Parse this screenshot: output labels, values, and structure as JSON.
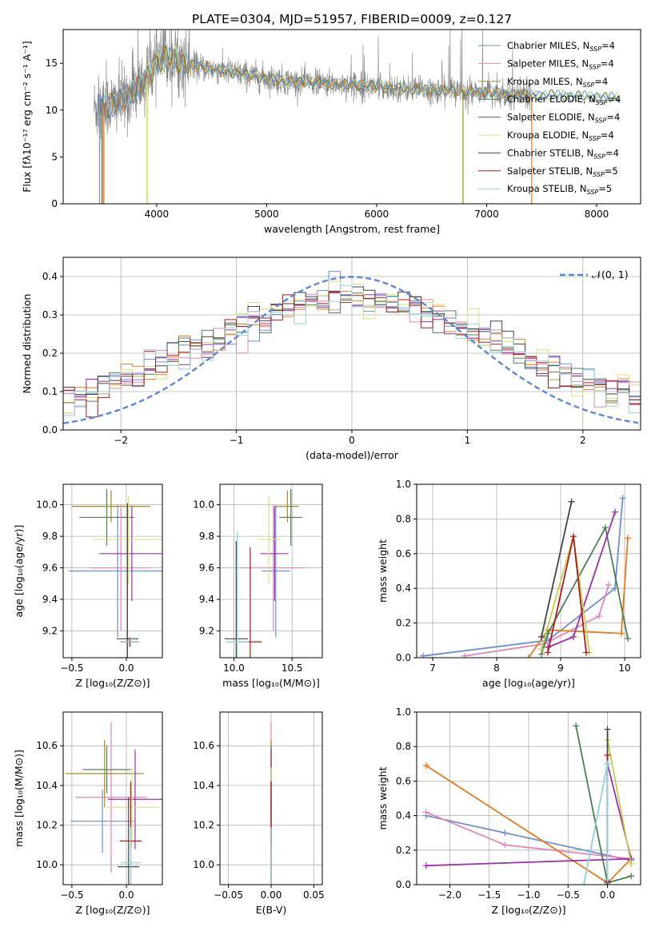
{
  "figure_title": "PLATE=0304, MJD=51957, FIBERID=0009, z=0.127",
  "legend": [
    {
      "label": "Chabrier MILES, N",
      "sub": "SSP",
      "suffix": "=4",
      "color": "#6a8fd6"
    },
    {
      "label": "Salpeter MILES, N",
      "sub": "SSP",
      "suffix": "=4",
      "color": "#e285b7"
    },
    {
      "label": "Kroupa MILES, N",
      "sub": "SSP",
      "suffix": "=4",
      "color": "#a88a22"
    },
    {
      "label": "Chabrier ELODIE, N",
      "sub": "SSP",
      "suffix": "=4",
      "color": "#4e7d55"
    },
    {
      "label": "Salpeter ELODIE, N",
      "sub": "SSP",
      "suffix": "=4",
      "color": "#9b30a8"
    },
    {
      "label": "Kroupa ELODIE, N",
      "sub": "SSP",
      "suffix": "=4",
      "color": "#d9e27a"
    },
    {
      "label": "Chabrier STELIB, N",
      "sub": "SSP",
      "suffix": "=4",
      "color": "#444444"
    },
    {
      "label": "Salpeter STELIB, N",
      "sub": "SSP",
      "suffix": "=5",
      "color": "#b01a1a"
    },
    {
      "label": "Kroupa STELIB, N",
      "sub": "SSP",
      "suffix": "=5",
      "color": "#8fd3d8"
    }
  ],
  "colors": {
    "data_gray": "#7f7f7f",
    "orange": "#e67a1c",
    "normal_curve": "#5b87d6",
    "grid": "#b0b0b0"
  },
  "chart_data": [
    {
      "id": "spectrum",
      "type": "line",
      "xlabel": "wavelength [Angstrom, rest frame]",
      "ylabel": "Flux [fλ10⁻¹⁷ erg cm⁻² s⁻¹ A⁻¹]",
      "xlim": [
        3150,
        8400
      ],
      "ylim": [
        0,
        18.6
      ],
      "xticks": [
        4000,
        5000,
        6000,
        7000,
        8000
      ],
      "yticks": [
        0,
        5,
        10,
        15
      ],
      "grid": false,
      "legend_position": "right",
      "continuum": {
        "x": [
          3430,
          3500,
          3600,
          3700,
          3800,
          3900,
          4000,
          4100,
          4200,
          4300,
          4400,
          4500,
          4600,
          4800,
          5000,
          5200,
          5400,
          5600,
          5800,
          6000,
          6200,
          6400,
          6600,
          6800,
          7000,
          7200,
          7400,
          7600,
          7800,
          8000,
          8200
        ],
        "y": [
          10.2,
          10.3,
          10.6,
          11.2,
          12.0,
          13.2,
          15.0,
          15.7,
          15.3,
          14.8,
          14.6,
          14.4,
          14.2,
          13.8,
          13.4,
          13.1,
          13.0,
          12.8,
          12.7,
          12.5,
          12.3,
          12.2,
          12.1,
          12.0,
          11.9,
          11.7,
          11.6,
          11.6,
          11.5,
          11.4,
          11.3
        ]
      }
    },
    {
      "id": "residuals",
      "type": "line",
      "xlabel": "(data-model)/error",
      "ylabel": "Normed distribution",
      "xlim": [
        -2.5,
        2.5
      ],
      "ylim": [
        0,
        0.45
      ],
      "xticks": [
        -2,
        -1,
        0,
        1,
        2
      ],
      "yticks": [
        0.0,
        0.1,
        0.2,
        0.3,
        0.4
      ],
      "grid": true,
      "legend_label": "𝒩(0, 1)",
      "legend_position": "top-right",
      "normal": {
        "mean": 0,
        "sigma": 1
      },
      "hist_bins": {
        "start": -2.5,
        "width": 0.1,
        "count": 50
      }
    },
    {
      "id": "age-vs-Z",
      "type": "scatter",
      "xlabel": "Z [log₁₀(Z/Z⊙)]",
      "ylabel": "age  [log₁₀(age/yr)]",
      "xlim": [
        -0.58,
        0.33
      ],
      "ylim": [
        9.03,
        10.13
      ],
      "xticks": [
        -0.5,
        0.0
      ],
      "yticks": [
        9.2,
        9.4,
        9.6,
        9.8,
        10.0
      ],
      "grid": true,
      "points": [
        {
          "x": -0.08,
          "y": 9.58,
          "xerr": 0.45,
          "yerr": 0.42
        },
        {
          "x": -0.05,
          "y": 9.6,
          "xerr": 0.28,
          "yerr": 0.4
        },
        {
          "x": -0.14,
          "y": 9.99,
          "xerr": 0.36,
          "yerr": 0.1
        },
        {
          "x": -0.18,
          "y": 9.92,
          "xerr": 0.25,
          "yerr": 0.18
        },
        {
          "x": 0.05,
          "y": 9.69,
          "xerr": 0.3,
          "yerr": 0.3
        },
        {
          "x": 0.02,
          "y": 9.78,
          "xerr": 0.32,
          "yerr": 0.28
        },
        {
          "x": 0.01,
          "y": 9.15,
          "xerr": 0.1,
          "yerr": 0.86
        },
        {
          "x": 0.03,
          "y": 9.13,
          "xerr": 0.08,
          "yerr": 0.03
        },
        {
          "x": 0.04,
          "y": 9.13,
          "xerr": 0.08,
          "yerr": 0.03
        }
      ]
    },
    {
      "id": "age-vs-mass",
      "type": "scatter",
      "xlabel": "mass [log₁₀(M/M⊙)]",
      "ylabel": "",
      "xlim": [
        9.88,
        10.76
      ],
      "ylim": [
        9.03,
        10.13
      ],
      "xticks": [
        10.0,
        10.5
      ],
      "yticks": [
        9.2,
        9.4,
        9.6,
        9.8,
        10.0
      ],
      "grid": true,
      "points": [
        {
          "x": 10.36,
          "y": 9.58,
          "xerr": 0.12,
          "yerr": 0.42
        },
        {
          "x": 10.34,
          "y": 9.6,
          "xerr": 0.28,
          "yerr": 0.4
        },
        {
          "x": 10.46,
          "y": 9.99,
          "xerr": 0.1,
          "yerr": 0.1
        },
        {
          "x": 10.49,
          "y": 9.92,
          "xerr": 0.1,
          "yerr": 0.18
        },
        {
          "x": 10.35,
          "y": 9.69,
          "xerr": 0.12,
          "yerr": 0.3
        },
        {
          "x": 10.3,
          "y": 9.78,
          "xerr": 0.1,
          "yerr": 0.28
        },
        {
          "x": 10.02,
          "y": 9.15,
          "xerr": 0.1,
          "yerr": 0.62
        },
        {
          "x": 10.14,
          "y": 9.13,
          "xerr": 0.1,
          "yerr": 0.6
        },
        {
          "x": 10.03,
          "y": 9.13,
          "xerr": 0.1,
          "yerr": 0.7
        }
      ]
    },
    {
      "id": "weight-vs-age",
      "type": "line",
      "xlabel": "age  [log₁₀(age/yr)]",
      "ylabel": "mass weight",
      "xlim": [
        6.75,
        10.25
      ],
      "ylim": [
        0,
        1.0
      ],
      "xticks": [
        7,
        8,
        9,
        10
      ],
      "yticks": [
        0.0,
        0.2,
        0.4,
        0.6,
        0.8,
        1.0
      ],
      "grid": true,
      "series": [
        {
          "x": [
            6.85,
            8.8,
            9.85,
            9.97
          ],
          "y": [
            0.01,
            0.1,
            0.4,
            0.92
          ]
        },
        {
          "x": [
            7.5,
            8.75,
            9.6,
            9.75
          ],
          "y": [
            0.01,
            0.08,
            0.24,
            0.42
          ]
        },
        {
          "x": [
            8.5,
            8.8,
            9.95,
            10.05
          ],
          "y": [
            0.0,
            0.16,
            0.14,
            0.69
          ]
        },
        {
          "x": [
            8.7,
            8.8,
            9.7,
            10.05
          ],
          "y": [
            0.02,
            0.14,
            0.75,
            0.11
          ]
        },
        {
          "x": [
            8.8,
            9.2,
            9.85
          ],
          "y": [
            0.06,
            0.12,
            0.84
          ]
        },
        {
          "x": [
            8.7,
            9.2,
            9.45
          ],
          "y": [
            0.05,
            0.7,
            0.03
          ]
        },
        {
          "x": [
            8.7,
            9.17
          ],
          "y": [
            0.12,
            0.9
          ]
        },
        {
          "x": [
            8.8,
            9.2,
            9.4
          ],
          "y": [
            0.03,
            0.7,
            0.03
          ]
        }
      ]
    },
    {
      "id": "mass-vs-Z",
      "type": "scatter",
      "xlabel": "Z [log₁₀(Z/Z⊙)]",
      "ylabel": "mass [log₁₀(M/M⊙)]",
      "xlim": [
        -0.58,
        0.33
      ],
      "ylim": [
        9.9,
        10.77
      ],
      "xticks": [
        -0.5,
        0.0
      ],
      "yticks": [
        10.0,
        10.2,
        10.4,
        10.6
      ],
      "grid": true,
      "points": [
        {
          "x": -0.22,
          "y": 10.22,
          "xerr": 0.29,
          "yerr": 0.16
        },
        {
          "x": -0.14,
          "y": 10.34,
          "xerr": 0.33,
          "yerr": 0.38
        },
        {
          "x": -0.2,
          "y": 10.46,
          "xerr": 0.36,
          "yerr": 0.17
        },
        {
          "x": -0.18,
          "y": 10.48,
          "xerr": 0.22,
          "yerr": 0.12
        },
        {
          "x": 0.08,
          "y": 10.33,
          "xerr": 0.25,
          "yerr": 0.25
        },
        {
          "x": 0.05,
          "y": 10.29,
          "xerr": 0.25,
          "yerr": 0.2
        },
        {
          "x": 0.02,
          "y": 9.99,
          "xerr": 0.1,
          "yerr": 0.35
        },
        {
          "x": 0.04,
          "y": 10.12,
          "xerr": 0.1,
          "yerr": 0.3
        },
        {
          "x": 0.04,
          "y": 10.01,
          "xerr": 0.09,
          "yerr": 0.18
        }
      ]
    },
    {
      "id": "mass-vs-ebv",
      "type": "scatter",
      "xlabel": "E(B-V)",
      "ylabel": "",
      "xlim": [
        -0.06,
        0.06
      ],
      "ylim": [
        9.9,
        10.77
      ],
      "xticks": [
        -0.05,
        0.0,
        0.05
      ],
      "yticks": [
        10.0,
        10.2,
        10.4,
        10.6
      ],
      "grid": true,
      "points": [
        {
          "x": 0.0,
          "y": 10.22,
          "xerr": 0.0,
          "yerr": 0.3
        },
        {
          "x": 0.0,
          "y": 10.34,
          "xerr": 0.0,
          "yerr": 0.38
        },
        {
          "x": 0.0,
          "y": 10.46,
          "xerr": 0.0,
          "yerr": 0.17
        },
        {
          "x": 0.0,
          "y": 10.48,
          "xerr": 0.0,
          "yerr": 0.12
        },
        {
          "x": 0.0,
          "y": 10.33,
          "xerr": 0.0,
          "yerr": 0.25
        },
        {
          "x": 0.0,
          "y": 10.29,
          "xerr": 0.0,
          "yerr": 0.2
        },
        {
          "x": 0.0,
          "y": 9.99,
          "xerr": 0.0,
          "yerr": 0.35
        },
        {
          "x": 0.0,
          "y": 10.12,
          "xerr": 0.0,
          "yerr": 0.3
        },
        {
          "x": 0.0,
          "y": 10.01,
          "xerr": 0.0,
          "yerr": 0.18
        }
      ]
    },
    {
      "id": "weight-vs-Z",
      "type": "line",
      "xlabel": "Z [log₁₀(Z/Z⊙)]",
      "ylabel": "mass weight",
      "xlim": [
        -2.42,
        0.42
      ],
      "ylim": [
        0,
        1.0
      ],
      "xticks": [
        -2.0,
        -1.5,
        -1.0,
        -0.5,
        0.0
      ],
      "yticks": [
        0.0,
        0.2,
        0.4,
        0.6,
        0.8,
        1.0
      ],
      "grid": true,
      "series": [
        {
          "x": [
            -2.3,
            -1.3,
            0.0,
            0.3
          ],
          "y": [
            0.4,
            0.3,
            0.17,
            0.14
          ]
        },
        {
          "x": [
            -2.3,
            -1.3,
            0.3
          ],
          "y": [
            0.42,
            0.23,
            0.15
          ]
        },
        {
          "x": [
            -2.3,
            0.0,
            0.3
          ],
          "y": [
            0.69,
            0.01,
            0.15
          ]
        },
        {
          "x": [
            -0.4,
            0.0,
            0.3
          ],
          "y": [
            0.92,
            0.01,
            0.05
          ]
        },
        {
          "x": [
            -2.3,
            0.3,
            0.0,
            0.0
          ],
          "y": [
            0.11,
            0.15,
            0.7,
            0.02
          ]
        },
        {
          "x": [
            0.0,
            0.3
          ],
          "y": [
            0.84,
            0.12
          ]
        },
        {
          "x": [
            0.0,
            0.0
          ],
          "y": [
            0.9,
            0.0
          ]
        },
        {
          "x": [
            0.0,
            0.0
          ],
          "y": [
            0.75,
            0.02
          ]
        },
        {
          "x": [
            -0.3,
            0.0,
            0.0
          ],
          "y": [
            0.0,
            0.7,
            0.03
          ]
        }
      ]
    }
  ]
}
